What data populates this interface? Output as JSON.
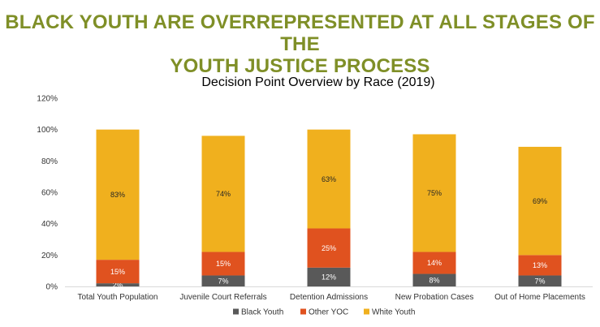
{
  "slide": {
    "title_line1": "BLACK YOUTH ARE OVERREPRESENTED AT ALL STAGES OF THE",
    "title_line2": "YOUTH JUSTICE PROCESS"
  },
  "chart_data": {
    "type": "bar",
    "stacked": true,
    "title": "Decision Point Overview by Race (2019)",
    "xlabel": "",
    "ylabel": "",
    "ylim": [
      0,
      120
    ],
    "yticks": [
      "0%",
      "20%",
      "40%",
      "60%",
      "80%",
      "100%",
      "120%"
    ],
    "grid": false,
    "legend_position": "bottom",
    "categories": [
      "Total Youth Population",
      "Juvenile Court Referrals",
      "Detention Admissions",
      "New Probation Cases",
      "Out of Home Placements"
    ],
    "series": [
      {
        "name": "Black Youth",
        "color": "#595959",
        "label_color": "#ffffff",
        "values": [
          2,
          7,
          12,
          8,
          7
        ],
        "labels": [
          "2%",
          "7%",
          "12%",
          "8%",
          "7%"
        ]
      },
      {
        "name": "Other YOC",
        "color": "#e0521f",
        "label_color": "#ffffff",
        "values": [
          15,
          15,
          25,
          14,
          13
        ],
        "labels": [
          "15%",
          "15%",
          "25%",
          "14%",
          "13%"
        ]
      },
      {
        "name": "White Youth",
        "color": "#f0b01e",
        "label_color": "#262626",
        "values": [
          83,
          74,
          63,
          75,
          69
        ],
        "labels": [
          "83%",
          "74%",
          "63%",
          "75%",
          "69%"
        ]
      }
    ]
  }
}
